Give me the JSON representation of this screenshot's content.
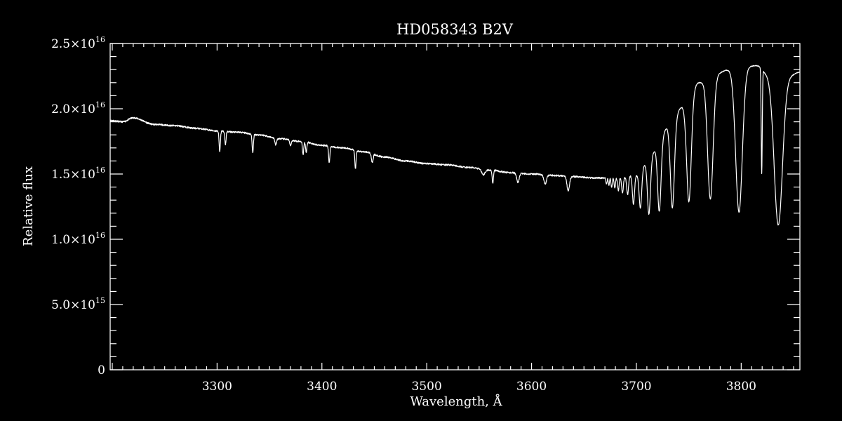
{
  "chart_data": {
    "type": "line",
    "title": "HD058343   B2V",
    "xlabel": "Wavelength, Å",
    "ylabel": "Relative flux",
    "xlim": [
      3198,
      3856
    ],
    "ylim": [
      0,
      2.5e+16
    ],
    "x_ticks": [
      {
        "value": 3300,
        "label": "3300"
      },
      {
        "value": 3400,
        "label": "3400"
      },
      {
        "value": 3500,
        "label": "3500"
      },
      {
        "value": 3600,
        "label": "3600"
      },
      {
        "value": 3700,
        "label": "3700"
      },
      {
        "value": 3800,
        "label": "3800"
      }
    ],
    "y_ticks": [
      {
        "value": 0,
        "mantissa": "0",
        "exponent": ""
      },
      {
        "value": 5000000000000000.0,
        "mantissa": "5.0×10",
        "exponent": "15"
      },
      {
        "value": 1e+16,
        "mantissa": "1.0×10",
        "exponent": "16"
      },
      {
        "value": 1.5e+16,
        "mantissa": "1.5×10",
        "exponent": "16"
      },
      {
        "value": 2e+16,
        "mantissa": "2.0×10",
        "exponent": "16"
      },
      {
        "value": 2.5e+16,
        "mantissa": "2.5×10",
        "exponent": "16"
      }
    ],
    "grid": false,
    "colors": {
      "background": "#000000",
      "foreground": "#ffffff",
      "line": "#ffffff"
    },
    "continuum": [
      [
        3198,
        1.91e+16
      ],
      [
        3210,
        1.9e+16
      ],
      [
        3220,
        1.93e+16
      ],
      [
        3240,
        1.88e+16
      ],
      [
        3260,
        1.87e+16
      ],
      [
        3280,
        1.85e+16
      ],
      [
        3300,
        1.83e+16
      ],
      [
        3320,
        1.82e+16
      ],
      [
        3340,
        1.8e+16
      ],
      [
        3360,
        1.77e+16
      ],
      [
        3380,
        1.75e+16
      ],
      [
        3400,
        1.72e+16
      ],
      [
        3420,
        1.7e+16
      ],
      [
        3440,
        1.67e+16
      ],
      [
        3460,
        1.63e+16
      ],
      [
        3480,
        1.6e+16
      ],
      [
        3500,
        1.58e+16
      ],
      [
        3520,
        1.57e+16
      ],
      [
        3540,
        1.55e+16
      ],
      [
        3560,
        1.53e+16
      ],
      [
        3580,
        1.51e+16
      ],
      [
        3600,
        1.5e+16
      ],
      [
        3620,
        1.49e+16
      ],
      [
        3640,
        1.48e+16
      ],
      [
        3660,
        1.47e+16
      ],
      [
        3680,
        1.47e+16
      ],
      [
        3700,
        1.49e+16
      ],
      [
        3710,
        1.58e+16
      ],
      [
        3720,
        1.7e+16
      ],
      [
        3730,
        1.86e+16
      ],
      [
        3745,
        2.02e+16
      ],
      [
        3760,
        2.2e+16
      ],
      [
        3790,
        2.3e+16
      ],
      [
        3815,
        2.33e+16
      ],
      [
        3825,
        2.27e+16
      ],
      [
        3845,
        2.25e+16
      ],
      [
        3856,
        2.28e+16
      ]
    ],
    "absorption_lines": [
      {
        "wavelength": 3302.5,
        "depth": 1600000000000000.0,
        "width": 0.6
      },
      {
        "wavelength": 3308.0,
        "depth": 1000000000000000.0,
        "width": 0.6
      },
      {
        "wavelength": 3334.0,
        "depth": 1400000000000000.0,
        "width": 0.6
      },
      {
        "wavelength": 3356.0,
        "depth": 500000000000000.0,
        "width": 0.8
      },
      {
        "wavelength": 3370.0,
        "depth": 400000000000000.0,
        "width": 0.8
      },
      {
        "wavelength": 3382.0,
        "depth": 1000000000000000.0,
        "width": 0.6
      },
      {
        "wavelength": 3385.0,
        "depth": 800000000000000.0,
        "width": 0.6
      },
      {
        "wavelength": 3407.0,
        "depth": 1300000000000000.0,
        "width": 0.6
      },
      {
        "wavelength": 3432.0,
        "depth": 1400000000000000.0,
        "width": 0.6
      },
      {
        "wavelength": 3448.0,
        "depth": 700000000000000.0,
        "width": 0.8
      },
      {
        "wavelength": 3554.0,
        "depth": 400000000000000.0,
        "width": 1.5
      },
      {
        "wavelength": 3563.0,
        "depth": 1000000000000000.0,
        "width": 0.6
      },
      {
        "wavelength": 3587.0,
        "depth": 700000000000000.0,
        "width": 1.2
      },
      {
        "wavelength": 3613.0,
        "depth": 700000000000000.0,
        "width": 1.2
      },
      {
        "wavelength": 3635.0,
        "depth": 1100000000000000.0,
        "width": 1.2
      }
    ],
    "balmer_lines": [
      {
        "wavelength": 3835.4,
        "depth": 1.15e+16,
        "width": 4.0
      },
      {
        "wavelength": 3797.9,
        "depth": 1.1e+16,
        "width": 3.2
      },
      {
        "wavelength": 3770.6,
        "depth": 9200000000000000.0,
        "width": 2.6
      },
      {
        "wavelength": 3750.2,
        "depth": 7800000000000000.0,
        "width": 2.2
      },
      {
        "wavelength": 3734.4,
        "depth": 6500000000000000.0,
        "width": 1.9
      },
      {
        "wavelength": 3721.9,
        "depth": 5000000000000000.0,
        "width": 1.6
      },
      {
        "wavelength": 3711.97,
        "depth": 4000000000000000.0,
        "width": 1.4
      },
      {
        "wavelength": 3703.9,
        "depth": 2800000000000000.0,
        "width": 1.2
      },
      {
        "wavelength": 3697.2,
        "depth": 2200000000000000.0,
        "width": 1.0
      },
      {
        "wavelength": 3691.6,
        "depth": 1400000000000000.0,
        "width": 0.9
      },
      {
        "wavelength": 3686.8,
        "depth": 1200000000000000.0,
        "width": 0.8
      },
      {
        "wavelength": 3682.8,
        "depth": 1000000000000000.0,
        "width": 0.7
      },
      {
        "wavelength": 3679.4,
        "depth": 800000000000000.0,
        "width": 0.6
      },
      {
        "wavelength": 3676.4,
        "depth": 700000000000000.0,
        "width": 0.6
      },
      {
        "wavelength": 3673.8,
        "depth": 600000000000000.0,
        "width": 0.5
      },
      {
        "wavelength": 3671.5,
        "depth": 500000000000000.0,
        "width": 0.5
      }
    ],
    "sharp_features": [
      {
        "wavelength": 3819.6,
        "depth": 8000000000000000.0,
        "width": 0.5
      }
    ]
  }
}
